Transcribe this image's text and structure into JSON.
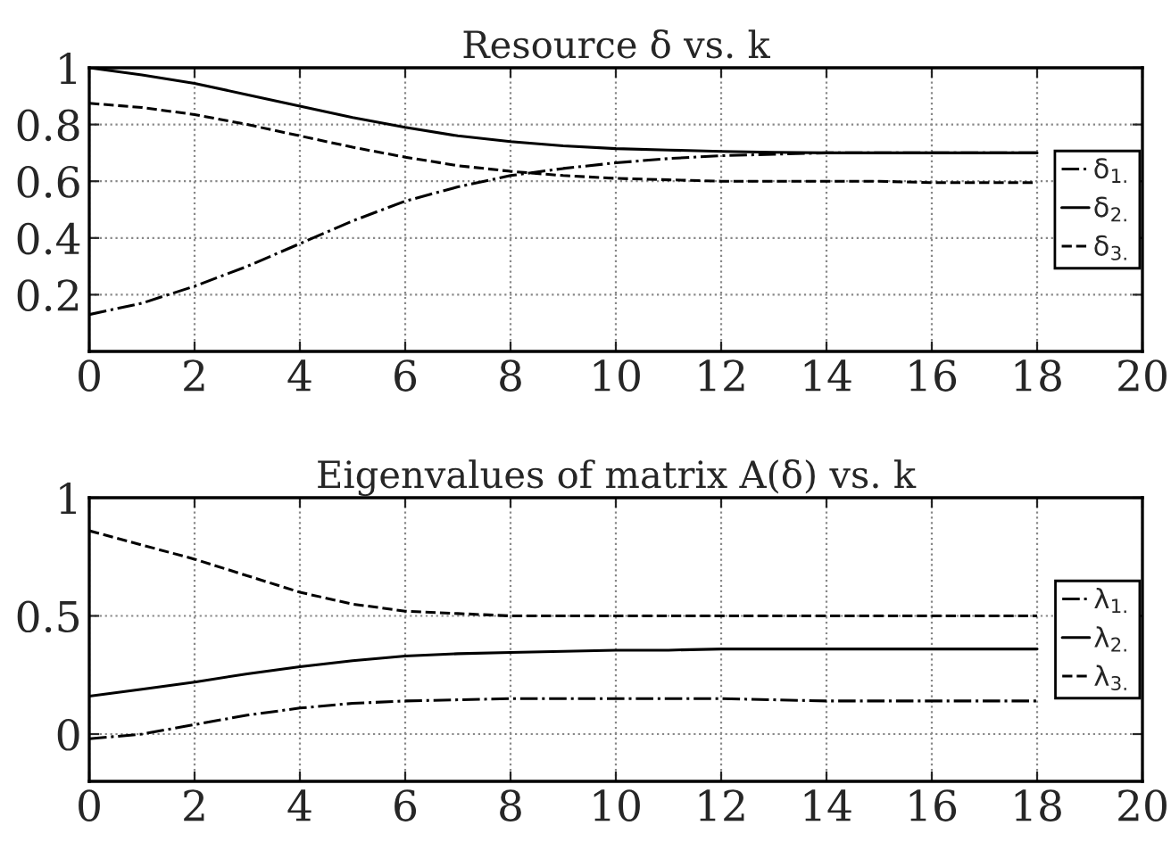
{
  "chart_data": [
    {
      "type": "line",
      "title": "Resource δ vs. k",
      "x": [
        0,
        1,
        2,
        3,
        4,
        5,
        6,
        7,
        8,
        9,
        10,
        11,
        12,
        13,
        14,
        15,
        16,
        17,
        18
      ],
      "xlim": [
        0,
        20
      ],
      "xticks": [
        0,
        2,
        4,
        6,
        8,
        10,
        12,
        14,
        16,
        18,
        20
      ],
      "ylim": [
        0,
        1
      ],
      "yticks": [
        0.2,
        0.4,
        0.6,
        0.8,
        1
      ],
      "grid": true,
      "legend": "right",
      "series": [
        {
          "name": "δ$_{1.}$",
          "color": "#000000",
          "line_style": "dashdot",
          "values": [
            0.13,
            0.17,
            0.23,
            0.3,
            0.38,
            0.46,
            0.53,
            0.58,
            0.62,
            0.645,
            0.665,
            0.68,
            0.69,
            0.695,
            0.7,
            0.7,
            0.7,
            0.7,
            0.7
          ]
        },
        {
          "name": "δ$_{2.}$",
          "color": "#000000",
          "line_style": "solid",
          "values": [
            1.0,
            0.975,
            0.945,
            0.905,
            0.865,
            0.825,
            0.79,
            0.76,
            0.74,
            0.725,
            0.715,
            0.71,
            0.705,
            0.702,
            0.7,
            0.7,
            0.7,
            0.7,
            0.7
          ]
        },
        {
          "name": "δ$_{3.}$",
          "color": "#000000",
          "line_style": "dashed",
          "values": [
            0.875,
            0.86,
            0.835,
            0.8,
            0.76,
            0.72,
            0.685,
            0.655,
            0.635,
            0.62,
            0.61,
            0.605,
            0.6,
            0.6,
            0.6,
            0.6,
            0.595,
            0.595,
            0.595
          ]
        }
      ]
    },
    {
      "type": "line",
      "title": "Eigenvalues of matrix A(δ) vs. k",
      "x": [
        0,
        1,
        2,
        3,
        4,
        5,
        6,
        7,
        8,
        9,
        10,
        11,
        12,
        13,
        14,
        15,
        16,
        17,
        18
      ],
      "xlim": [
        0,
        20
      ],
      "xticks": [
        0,
        2,
        4,
        6,
        8,
        10,
        12,
        14,
        16,
        18,
        20
      ],
      "ylim": [
        -0.2,
        1
      ],
      "yticks": [
        0,
        0.5,
        1
      ],
      "grid": true,
      "legend": "right",
      "series": [
        {
          "name": "λ$_{1.}$",
          "color": "#000000",
          "line_style": "dashdot",
          "values": [
            -0.02,
            0.0,
            0.04,
            0.08,
            0.11,
            0.13,
            0.14,
            0.145,
            0.15,
            0.15,
            0.15,
            0.15,
            0.15,
            0.145,
            0.14,
            0.14,
            0.14,
            0.14,
            0.14
          ]
        },
        {
          "name": "λ$_{2.}$",
          "color": "#000000",
          "line_style": "solid",
          "values": [
            0.16,
            0.19,
            0.22,
            0.255,
            0.285,
            0.31,
            0.33,
            0.34,
            0.345,
            0.35,
            0.355,
            0.355,
            0.36,
            0.36,
            0.36,
            0.36,
            0.36,
            0.36,
            0.36
          ]
        },
        {
          "name": "λ$_{3.}$",
          "color": "#000000",
          "line_style": "dashed",
          "values": [
            0.86,
            0.8,
            0.74,
            0.67,
            0.6,
            0.55,
            0.52,
            0.51,
            0.5,
            0.5,
            0.5,
            0.5,
            0.5,
            0.5,
            0.5,
            0.5,
            0.5,
            0.5,
            0.5
          ]
        }
      ]
    }
  ]
}
